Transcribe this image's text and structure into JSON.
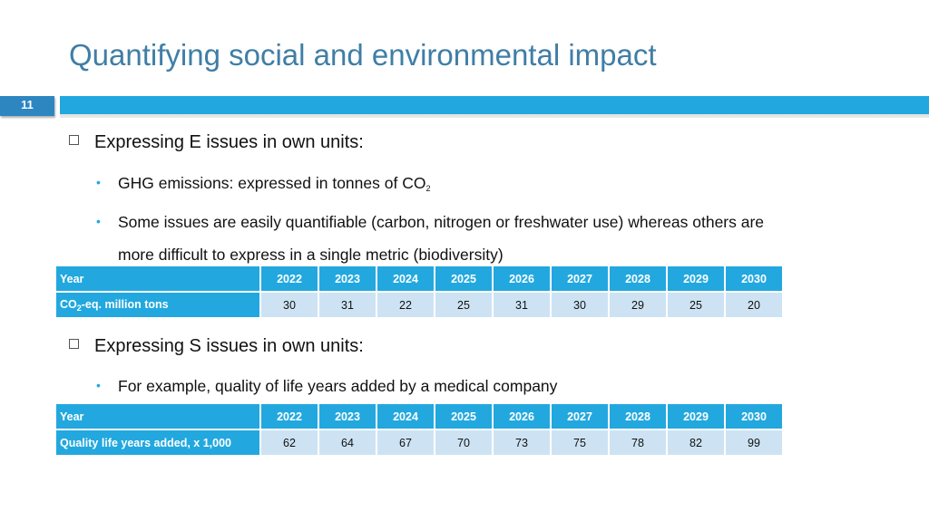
{
  "title": "Quantifying social and environmental impact",
  "page_number": "11",
  "section_e": {
    "heading": "Expressing E issues in own units:",
    "bullet1_prefix": "GHG emissions: expressed in tonnes of CO",
    "bullet1_sub": "2",
    "bullet2_line1": "Some issues are easily quantifiable (carbon, nitrogen or freshwater use) whereas others are",
    "bullet2_line2": "more difficult to express in a single metric (biodiversity)"
  },
  "table_e": {
    "header_label": "Year",
    "years": [
      "2022",
      "2023",
      "2024",
      "2025",
      "2026",
      "2027",
      "2028",
      "2029",
      "2030"
    ],
    "row_label_prefix": "CO",
    "row_label_sub": "2",
    "row_label_suffix": "-eq. million tons",
    "values": [
      "30",
      "31",
      "22",
      "25",
      "31",
      "30",
      "29",
      "25",
      "20"
    ]
  },
  "section_s": {
    "heading": "Expressing S issues in own units:",
    "bullet1": "For example, quality of life years added by a medical company"
  },
  "table_s": {
    "header_label": "Year",
    "years": [
      "2022",
      "2023",
      "2024",
      "2025",
      "2026",
      "2027",
      "2028",
      "2029",
      "2030"
    ],
    "row_label": "Quality life years added, x 1,000",
    "values": [
      "62",
      "64",
      "67",
      "70",
      "73",
      "75",
      "78",
      "82",
      "99"
    ]
  },
  "colors": {
    "accent": "#22a8df",
    "title": "#3f7ea6",
    "cell": "#cde3f3"
  }
}
